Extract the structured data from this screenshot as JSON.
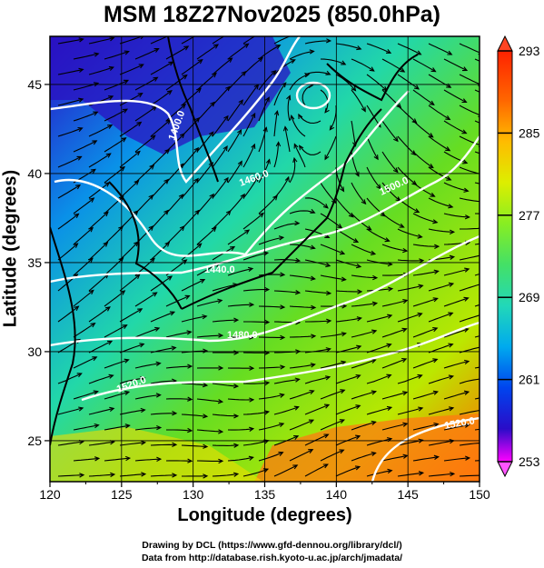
{
  "title": "MSM 18Z27Nov2025 (850.0hPa)",
  "map": {
    "xlabel": "Longitude (degrees)",
    "ylabel": "Latitude  (degrees)",
    "lon_range": [
      120,
      150
    ],
    "lat_range": [
      22.7,
      47.7
    ],
    "lon_ticks": [
      "120",
      "125",
      "130",
      "135",
      "140",
      "145",
      "150"
    ],
    "lat_ticks": [
      "25",
      "30",
      "35",
      "40",
      "45"
    ],
    "contour_labels": [
      "1400.0",
      "1460.0",
      "1500.0",
      "1440.0",
      "1480.0",
      "1520.0",
      "1520.0"
    ],
    "grid": true,
    "features": [
      "temperature-shading",
      "streamlines",
      "geopotential-height-contours",
      "coastlines"
    ]
  },
  "colorbar": {
    "ticks": [
      "293",
      "285",
      "277",
      "269",
      "261",
      "253"
    ],
    "min": 253,
    "max": 293,
    "colors": [
      "#ff00ff",
      "#8800dd",
      "#2a0cc8",
      "#0044ee",
      "#00aaee",
      "#22d8b8",
      "#44e066",
      "#88ee22",
      "#ddee00",
      "#ffbb00",
      "#ff6600",
      "#ff2200"
    ]
  },
  "credits": {
    "line1": "Drawing by DCL (https://www.gfd-dennou.org/library/dcl/)",
    "line2": "Data from http://database.rish.kyoto-u.ac.jp/arch/jmadata/"
  }
}
